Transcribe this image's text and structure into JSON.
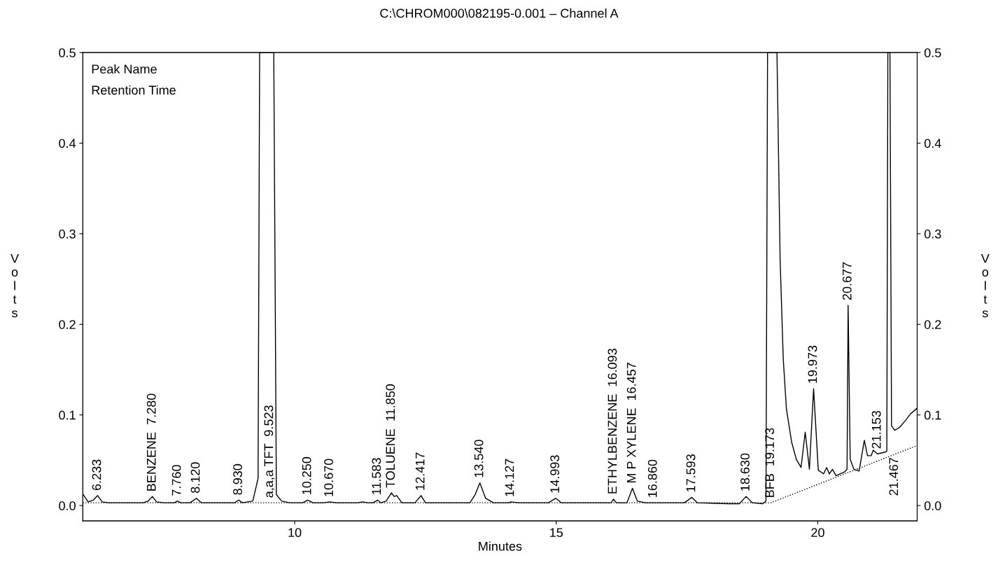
{
  "chart_data": {
    "type": "line",
    "title": "C:\\CHROM000\\082195-0.001 – Channel A",
    "xlabel": "Minutes",
    "ylabel": "Volts",
    "y2label": "Volts",
    "xlim": [
      5.95,
      21.9
    ],
    "xticks": [
      10,
      15,
      20
    ],
    "ylim": [
      -0.017,
      0.5
    ],
    "yticks": [
      {
        "value": 0,
        "label": "0.0"
      },
      {
        "value": 0.1,
        "label": "0.1"
      },
      {
        "value": 0.2,
        "label": "0.2"
      },
      {
        "value": 0.3,
        "label": "0.3"
      },
      {
        "value": 0.4,
        "label": "0.4"
      },
      {
        "value": 0.5,
        "label": "0.5"
      }
    ],
    "y2lim": [
      -0.017,
      0.5
    ],
    "y2ticks": [
      {
        "value": 0,
        "label": "0.0"
      },
      {
        "value": 0.1,
        "label": "0.1"
      },
      {
        "value": 0.2,
        "label": "0.2"
      },
      {
        "value": 0.3,
        "label": "0.3"
      },
      {
        "value": 0.4,
        "label": "0.4"
      },
      {
        "value": 0.5,
        "label": "0.5"
      }
    ],
    "grid": false,
    "legend": false,
    "marker": "none",
    "series": [
      {
        "color": "#000000",
        "line_style": "solid",
        "x": [
          5.96,
          6.05,
          6.15,
          6.233,
          6.32,
          6.45,
          7.1,
          7.2,
          7.28,
          7.36,
          7.5,
          7.7,
          7.76,
          7.82,
          8.0,
          8.12,
          8.22,
          8.4,
          8.85,
          8.93,
          9.0,
          9.2,
          9.3,
          9.33,
          9.36,
          9.56,
          9.6,
          9.65,
          9.75,
          9.9,
          10.15,
          10.25,
          10.35,
          10.55,
          10.67,
          10.8,
          11.2,
          11.3,
          11.4,
          11.5,
          11.583,
          11.65,
          11.75,
          11.85,
          11.9,
          11.95,
          12.05,
          12.3,
          12.417,
          12.5,
          13.35,
          13.45,
          13.54,
          13.65,
          13.8,
          14.1,
          14.127,
          14.3,
          14.85,
          14.993,
          15.1,
          15.9,
          16.05,
          16.093,
          16.15,
          16.35,
          16.457,
          16.55,
          16.7,
          16.86,
          17.45,
          17.593,
          17.7,
          18.3,
          18.5,
          18.63,
          18.75,
          18.95,
          19.01,
          19.04,
          19.21,
          19.22,
          19.28,
          19.34,
          19.4,
          19.5,
          19.59,
          19.68,
          19.76,
          19.84,
          19.92,
          20.01,
          20.11,
          20.17,
          20.22,
          20.28,
          20.35,
          20.51,
          20.56,
          20.58,
          20.62,
          20.69,
          20.79,
          20.89,
          20.95,
          21.02,
          21.06,
          21.14,
          21.29,
          21.32,
          21.34,
          21.38,
          21.41,
          21.47,
          21.56,
          21.68,
          21.77,
          21.89
        ],
        "values": [
          0.012,
          0.004,
          0.006,
          0.011,
          0.004,
          0.003,
          0.003,
          0.005,
          0.01,
          0.004,
          0.003,
          0.003,
          0.005,
          0.003,
          0.003,
          0.008,
          0.003,
          0.003,
          0.003,
          0.006,
          0.003,
          0.005,
          0.03,
          0.5,
          0.5,
          0.5,
          0.5,
          0.012,
          0.005,
          0.003,
          0.003,
          0.006,
          0.003,
          0.003,
          0.004,
          0.003,
          0.003,
          0.004,
          0.003,
          0.003,
          0.006,
          0.003,
          0.005,
          0.014,
          0.01,
          0.011,
          0.003,
          0.003,
          0.011,
          0.003,
          0.003,
          0.012,
          0.025,
          0.008,
          0.003,
          0.003,
          0.004,
          0.003,
          0.003,
          0.008,
          0.003,
          0.003,
          0.003,
          0.007,
          0.003,
          0.003,
          0.019,
          0.005,
          0.003,
          0.003,
          0.003,
          0.009,
          0.003,
          0.002,
          0.002,
          0.01,
          0.003,
          0.002,
          0.005,
          0.5,
          0.5,
          0.5,
          0.272,
          0.162,
          0.107,
          0.07,
          0.051,
          0.042,
          0.081,
          0.04,
          0.129,
          0.039,
          0.035,
          0.042,
          0.035,
          0.04,
          0.033,
          0.037,
          0.04,
          0.221,
          0.051,
          0.04,
          0.038,
          0.072,
          0.055,
          0.055,
          0.061,
          0.057,
          0.059,
          0.06,
          0.5,
          0.5,
          0.088,
          0.083,
          0.086,
          0.094,
          0.101,
          0.107
        ]
      },
      {
        "color": "#000000",
        "line_style": "dotted",
        "x": [
          5.95,
          19.1,
          21.89
        ],
        "values": [
          0.003,
          0.003,
          0.066
        ]
      }
    ],
    "annotations": [
      "Peak Name",
      "Retention Time",
      {
        "text": "6.233",
        "x": 6.233,
        "y": 0.011
      },
      {
        "text": "BENZENE  7.280",
        "x": 7.28,
        "y": 0.01
      },
      {
        "text": "7.760",
        "x": 7.76,
        "y": 0.005
      },
      {
        "text": "8.120",
        "x": 8.12,
        "y": 0.008
      },
      {
        "text": "8.930",
        "x": 8.93,
        "y": 0.006
      },
      {
        "text": "a,a,a TFT  9.523",
        "x": 9.523,
        "y": 0.003
      },
      {
        "text": "10.250",
        "x": 10.25,
        "y": 0.006
      },
      {
        "text": "10.670",
        "x": 10.67,
        "y": 0.004
      },
      {
        "text": "11.583",
        "x": 11.583,
        "y": 0.006
      },
      {
        "text": "TOLUENE  11.850",
        "x": 11.85,
        "y": 0.014
      },
      {
        "text": "12.417",
        "x": 12.417,
        "y": 0.011
      },
      {
        "text": "13.540",
        "x": 13.54,
        "y": 0.025
      },
      {
        "text": "14.127",
        "x": 14.127,
        "y": 0.004
      },
      {
        "text": "14.993",
        "x": 14.993,
        "y": 0.008
      },
      {
        "text": "ETHYLBENZENE  16.093",
        "x": 16.093,
        "y": 0.007
      },
      {
        "text": "M P XYLENE  16.457",
        "x": 16.457,
        "y": 0.019
      },
      {
        "text": "16.860",
        "x": 16.86,
        "y": 0.003
      },
      {
        "text": "17.593",
        "x": 17.593,
        "y": 0.009
      },
      {
        "text": "18.630",
        "x": 18.63,
        "y": 0.01
      },
      {
        "text": "BFB  19.173",
        "x": 19.1,
        "y": 0.003
      },
      {
        "text": "19.973",
        "x": 19.92,
        "y": 0.129
      },
      {
        "text": "20.677",
        "x": 20.58,
        "y": 0.221
      },
      {
        "text": "21.153",
        "x": 21.14,
        "y": 0.057
      },
      {
        "text": "21.467",
        "x": 21.47,
        "y": 0.0565
      }
    ]
  }
}
